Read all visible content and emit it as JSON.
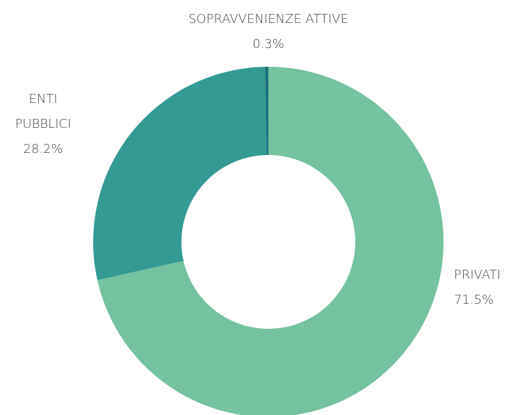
{
  "chart_data": {
    "type": "donut",
    "categories": [
      "PRIVATI",
      "ENTI PUBBLICI",
      "SOPRAVVENIENZE ATTIVE"
    ],
    "values": [
      71.5,
      28.2,
      0.3
    ],
    "value_labels": [
      "71.5%",
      "28.2%",
      "0.3%"
    ],
    "colors": [
      "#74c29f",
      "#339a94",
      "#1b6e7c"
    ]
  }
}
